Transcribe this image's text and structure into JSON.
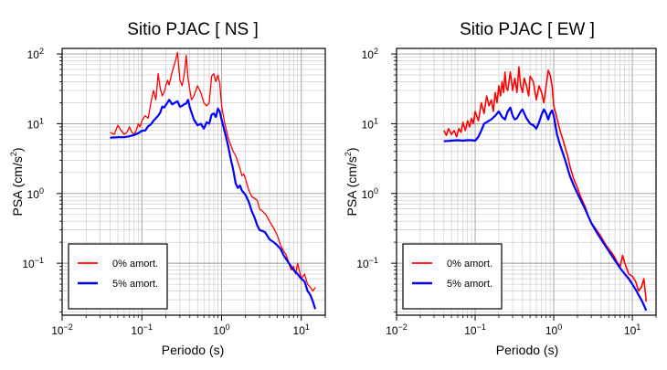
{
  "chart_data": [
    {
      "type": "line",
      "title": "Sitio PJAC [ NS ]",
      "xlabel": "Periodo (s)",
      "ylabel_main": "PSA (cm/s",
      "ylabel_sup": "2",
      "ylabel_close": ")",
      "xscale": "log",
      "yscale": "log",
      "xlim": [
        0.01,
        20
      ],
      "ylim": [
        0.018,
        120
      ],
      "grid": true,
      "legend_position": "bottom-left",
      "xticks": [
        {
          "v": 0.01,
          "base": "10",
          "exp": "−2"
        },
        {
          "v": 0.1,
          "base": "10",
          "exp": "−1"
        },
        {
          "v": 1,
          "base": "10",
          "exp": "0"
        },
        {
          "v": 10,
          "base": "10",
          "exp": "1"
        }
      ],
      "yticks": [
        {
          "v": 0.1,
          "base": "10",
          "exp": "−1"
        },
        {
          "v": 1,
          "base": "10",
          "exp": "0"
        },
        {
          "v": 10,
          "base": "10",
          "exp": "1"
        },
        {
          "v": 100,
          "base": "10",
          "exp": "2"
        }
      ],
      "series": [
        {
          "name": "0% amort.",
          "color": "#ff0000",
          "width": 1.3,
          "x": [
            0.04,
            0.045,
            0.05,
            0.055,
            0.06,
            0.065,
            0.07,
            0.075,
            0.08,
            0.085,
            0.09,
            0.095,
            0.1,
            0.11,
            0.12,
            0.13,
            0.14,
            0.15,
            0.16,
            0.17,
            0.18,
            0.19,
            0.2,
            0.21,
            0.22,
            0.24,
            0.26,
            0.28,
            0.3,
            0.32,
            0.34,
            0.36,
            0.38,
            0.4,
            0.42,
            0.45,
            0.5,
            0.55,
            0.6,
            0.65,
            0.7,
            0.75,
            0.8,
            0.85,
            0.9,
            0.95,
            1.0,
            1.1,
            1.2,
            1.3,
            1.4,
            1.5,
            1.6,
            1.7,
            1.8,
            1.9,
            2.0,
            2.2,
            2.4,
            2.6,
            2.8,
            3.0,
            3.3,
            3.6,
            4.0,
            4.5,
            5.0,
            5.5,
            6.0,
            6.5,
            7.0,
            7.5,
            8.0,
            8.5,
            9.0,
            10,
            11,
            12,
            13,
            14,
            15
          ],
          "y": [
            7.5,
            7.0,
            9.5,
            8.0,
            7.0,
            7.5,
            9.0,
            7.5,
            7.0,
            8.0,
            10.0,
            9.0,
            11.0,
            13.0,
            12.0,
            20.0,
            30.0,
            22.0,
            52.0,
            32.0,
            25.0,
            28.0,
            35.0,
            42.0,
            36.0,
            55.0,
            75.0,
            105.0,
            42.0,
            35.0,
            50.0,
            95.0,
            45.0,
            30.0,
            22.0,
            25.0,
            35.0,
            28.0,
            20.0,
            18.0,
            20.0,
            48.0,
            52.0,
            40.0,
            50.0,
            38.0,
            18.0,
            10.0,
            6.5,
            5.0,
            4.0,
            3.5,
            2.8,
            2.3,
            1.8,
            1.9,
            1.6,
            1.1,
            0.9,
            0.85,
            0.8,
            0.6,
            0.55,
            0.5,
            0.4,
            0.32,
            0.25,
            0.18,
            0.15,
            0.13,
            0.1,
            0.08,
            0.09,
            0.07,
            0.1,
            0.06,
            0.07,
            0.05,
            0.045,
            0.04,
            0.045
          ]
        },
        {
          "name": "5% amort.",
          "color": "#0000ff",
          "width": 2.2,
          "x": [
            0.04,
            0.05,
            0.06,
            0.07,
            0.08,
            0.09,
            0.1,
            0.11,
            0.12,
            0.13,
            0.14,
            0.15,
            0.16,
            0.17,
            0.18,
            0.19,
            0.2,
            0.22,
            0.24,
            0.26,
            0.28,
            0.3,
            0.32,
            0.34,
            0.36,
            0.38,
            0.4,
            0.45,
            0.5,
            0.55,
            0.6,
            0.65,
            0.7,
            0.75,
            0.8,
            0.85,
            0.9,
            0.95,
            1.0,
            1.1,
            1.2,
            1.3,
            1.4,
            1.5,
            1.6,
            1.7,
            1.8,
            2.0,
            2.2,
            2.4,
            2.6,
            2.8,
            3.0,
            3.5,
            4.0,
            4.5,
            5.0,
            5.5,
            6.0,
            7.0,
            8.0,
            9.0,
            10,
            11,
            12,
            13,
            14,
            15
          ],
          "y": [
            6.3,
            6.4,
            6.4,
            6.6,
            6.9,
            7.3,
            7.9,
            8.0,
            9.2,
            9.8,
            11.0,
            12.0,
            13.0,
            14.5,
            17.5,
            17.0,
            18.5,
            22.0,
            19.0,
            20.0,
            21.0,
            17.5,
            18.0,
            19.0,
            19.5,
            22.0,
            17.0,
            11.5,
            9.5,
            10.0,
            8.5,
            10.5,
            10.0,
            13.5,
            14.0,
            12.5,
            16.5,
            15.0,
            11.5,
            7.5,
            5.0,
            3.2,
            2.2,
            1.4,
            1.2,
            1.3,
            1.1,
            0.95,
            0.75,
            0.55,
            0.45,
            0.35,
            0.3,
            0.28,
            0.22,
            0.2,
            0.18,
            0.16,
            0.13,
            0.1,
            0.08,
            0.07,
            0.06,
            0.055,
            0.04,
            0.035,
            0.028,
            0.022
          ]
        }
      ]
    },
    {
      "type": "line",
      "title": "Sitio PJAC [ EW ]",
      "xlabel": "Periodo (s)",
      "ylabel_main": "PSA (cm/s",
      "ylabel_sup": "2",
      "ylabel_close": ")",
      "xscale": "log",
      "yscale": "log",
      "xlim": [
        0.01,
        20
      ],
      "ylim": [
        0.018,
        120
      ],
      "grid": true,
      "legend_position": "bottom-left",
      "xticks": [
        {
          "v": 0.01,
          "base": "10",
          "exp": "−2"
        },
        {
          "v": 0.1,
          "base": "10",
          "exp": "−1"
        },
        {
          "v": 1,
          "base": "10",
          "exp": "0"
        },
        {
          "v": 10,
          "base": "10",
          "exp": "1"
        }
      ],
      "yticks": [
        {
          "v": 0.1,
          "base": "10",
          "exp": "−1"
        },
        {
          "v": 1,
          "base": "10",
          "exp": "0"
        },
        {
          "v": 10,
          "base": "10",
          "exp": "1"
        },
        {
          "v": 100,
          "base": "10",
          "exp": "2"
        }
      ],
      "series": [
        {
          "name": "0% amort.",
          "color": "#ff0000",
          "width": 1.6,
          "x": [
            0.04,
            0.043,
            0.046,
            0.05,
            0.054,
            0.058,
            0.062,
            0.066,
            0.07,
            0.075,
            0.08,
            0.085,
            0.09,
            0.095,
            0.1,
            0.11,
            0.12,
            0.13,
            0.14,
            0.15,
            0.16,
            0.17,
            0.18,
            0.19,
            0.2,
            0.21,
            0.22,
            0.23,
            0.24,
            0.25,
            0.26,
            0.28,
            0.3,
            0.32,
            0.34,
            0.36,
            0.38,
            0.4,
            0.42,
            0.45,
            0.48,
            0.5,
            0.55,
            0.6,
            0.65,
            0.7,
            0.75,
            0.8,
            0.85,
            0.9,
            0.95,
            1.0,
            1.1,
            1.2,
            1.3,
            1.4,
            1.5,
            1.6,
            1.8,
            2.0,
            2.2,
            2.5,
            2.8,
            3.0,
            3.5,
            4.0,
            4.5,
            5.0,
            5.5,
            6.0,
            6.5,
            7.0,
            7.5,
            8.0,
            9.0,
            10,
            11,
            12,
            13,
            14,
            15
          ],
          "y": [
            8.0,
            6.8,
            8.5,
            7.0,
            8.0,
            6.5,
            8.5,
            7.5,
            10.5,
            8.0,
            11.0,
            9.0,
            12.0,
            10.0,
            15.0,
            11.0,
            20.0,
            14.0,
            25.0,
            18.0,
            22.0,
            15.0,
            28.0,
            20.0,
            35.0,
            25.0,
            40.0,
            28.0,
            55.0,
            32.0,
            30.0,
            55.0,
            30.0,
            45.0,
            28.0,
            65.0,
            35.0,
            28.0,
            45.0,
            35.0,
            25.0,
            48.0,
            40.0,
            22.0,
            35.0,
            28.0,
            20.0,
            35.0,
            58.0,
            50.0,
            35.0,
            18.0,
            12.0,
            8.0,
            6.0,
            4.5,
            3.5,
            2.5,
            1.6,
            1.2,
            0.9,
            0.65,
            0.45,
            0.38,
            0.3,
            0.24,
            0.19,
            0.16,
            0.14,
            0.12,
            0.1,
            0.09,
            0.13,
            0.1,
            0.07,
            0.065,
            0.055,
            0.04,
            0.045,
            0.06,
            0.028
          ]
        },
        {
          "name": "5% amort.",
          "color": "#0000ff",
          "width": 2.2,
          "x": [
            0.04,
            0.05,
            0.06,
            0.07,
            0.08,
            0.09,
            0.1,
            0.11,
            0.12,
            0.13,
            0.14,
            0.15,
            0.16,
            0.18,
            0.2,
            0.22,
            0.24,
            0.26,
            0.28,
            0.3,
            0.32,
            0.34,
            0.36,
            0.38,
            0.4,
            0.45,
            0.5,
            0.55,
            0.6,
            0.65,
            0.7,
            0.75,
            0.8,
            0.85,
            0.9,
            0.95,
            1.0,
            1.1,
            1.2,
            1.4,
            1.6,
            1.8,
            2.0,
            2.5,
            3.0,
            3.5,
            4.0,
            5.0,
            6.0,
            7.0,
            8.0,
            9.0,
            10,
            11,
            12,
            13,
            14,
            15
          ],
          "y": [
            5.6,
            5.7,
            5.8,
            5.7,
            5.8,
            5.8,
            5.7,
            6.5,
            8.0,
            10.0,
            10.5,
            11.0,
            11.5,
            13.0,
            15.0,
            12.5,
            11.5,
            15.0,
            17.0,
            13.0,
            11.5,
            12.0,
            13.5,
            15.0,
            16.0,
            12.0,
            10.0,
            9.5,
            8.5,
            10.5,
            13.5,
            16.0,
            14.0,
            11.5,
            14.0,
            15.5,
            13.0,
            7.0,
            5.0,
            3.0,
            1.8,
            1.3,
            1.0,
            0.6,
            0.38,
            0.28,
            0.22,
            0.15,
            0.11,
            0.085,
            0.07,
            0.06,
            0.05,
            0.042,
            0.035,
            0.03,
            0.025,
            0.021
          ]
        }
      ]
    }
  ]
}
